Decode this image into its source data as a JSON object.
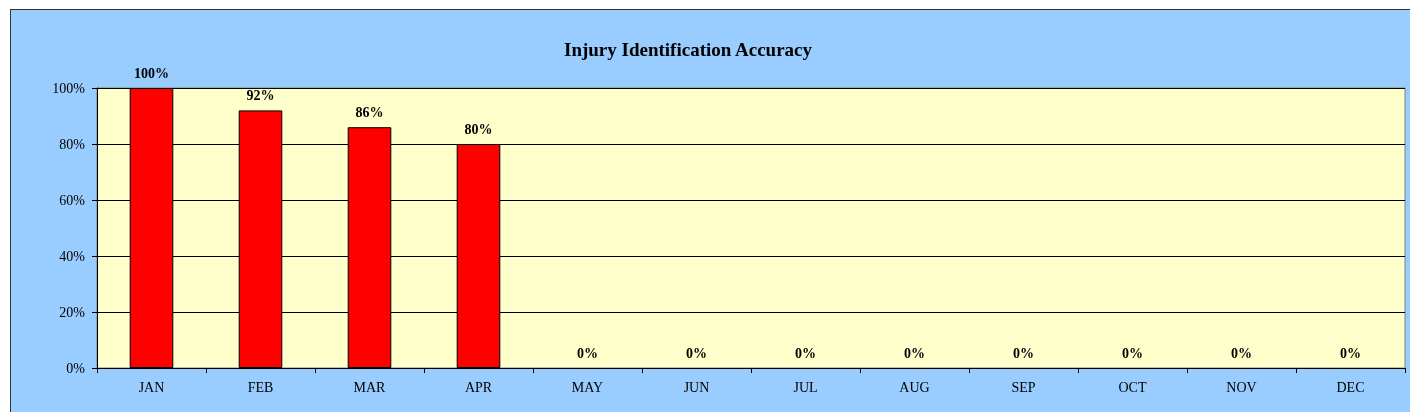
{
  "chart_data": {
    "type": "bar",
    "title": "Injury Identification Accuracy",
    "categories": [
      "JAN",
      "FEB",
      "MAR",
      "APR",
      "MAY",
      "JUN",
      "JUL",
      "AUG",
      "SEP",
      "OCT",
      "NOV",
      "DEC"
    ],
    "values": [
      100,
      92,
      86,
      80,
      0,
      0,
      0,
      0,
      0,
      0,
      0,
      0
    ],
    "color": "#ff0000",
    "value_labels": [
      "100%",
      "92%",
      "86%",
      "80%",
      "0%",
      "0%",
      "0%",
      "0%",
      "0%",
      "0%",
      "0%",
      "0%"
    ],
    "ylim": [
      0,
      100
    ],
    "yticks": [
      {
        "value": 0,
        "label": "0%"
      },
      {
        "value": 20,
        "label": "20%"
      },
      {
        "value": 40,
        "label": "40%"
      },
      {
        "value": 60,
        "label": "60%"
      },
      {
        "value": 80,
        "label": "80%"
      },
      {
        "value": 100,
        "label": "100%"
      }
    ],
    "grid": "y"
  }
}
